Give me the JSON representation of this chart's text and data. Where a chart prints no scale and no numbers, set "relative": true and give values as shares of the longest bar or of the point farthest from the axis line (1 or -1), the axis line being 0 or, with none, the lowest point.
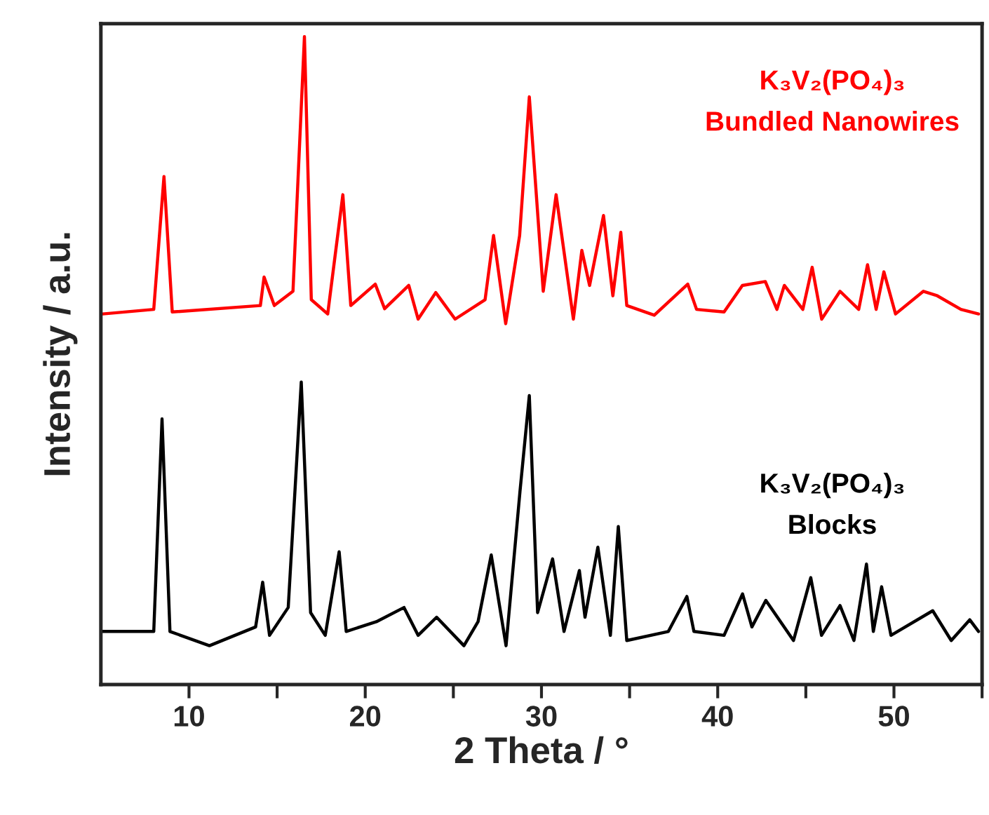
{
  "chart_data": {
    "type": "line",
    "xlabel": "2 Theta / °",
    "ylabel": "Intensity / a.u.",
    "relative": true,
    "xlim": [
      5,
      55
    ],
    "xticks": [
      10,
      {
        "value": 15,
        "label": null
      },
      20,
      {
        "value": 25,
        "label": null
      },
      30,
      {
        "value": 35,
        "label": null
      },
      40,
      {
        "value": 45,
        "label": null
      },
      50,
      {
        "value": 55,
        "label": null
      }
    ],
    "tick_labels": "x",
    "grid": false,
    "legend": false,
    "marker": "none",
    "line_style": "solid",
    "series": [
      {
        "name": "K₃V₂(PO₄)₃\nBundled Nanowires",
        "color": "#ff0000",
        "x": [
          5.1,
          8.0,
          8.58,
          9.05,
          14.05,
          14.26,
          14.84,
          15.9,
          16.55,
          16.94,
          17.87,
          18.73,
          19.18,
          20.57,
          21.1,
          22.47,
          23.0,
          24.0,
          25.1,
          26.8,
          27.28,
          27.97,
          28.76,
          29.31,
          30.1,
          30.83,
          31.81,
          32.29,
          32.73,
          33.52,
          34.05,
          34.5,
          34.84,
          36.4,
          38.3,
          38.8,
          40.36,
          41.4,
          42.7,
          43.36,
          43.78,
          44.83,
          45.36,
          45.9,
          46.94,
          48.0,
          48.5,
          48.99,
          49.43,
          50.09,
          51.67,
          52.46,
          53.8,
          54.8
        ],
        "values": [
          0.572,
          0.579,
          0.784,
          0.575,
          0.585,
          0.629,
          0.585,
          0.607,
          1.0,
          0.594,
          0.572,
          0.756,
          0.585,
          0.618,
          0.58,
          0.616,
          0.564,
          0.605,
          0.564,
          0.594,
          0.693,
          0.557,
          0.693,
          0.907,
          0.607,
          0.756,
          0.564,
          0.67,
          0.616,
          0.724,
          0.6,
          0.698,
          0.585,
          0.57,
          0.618,
          0.579,
          0.575,
          0.616,
          0.622,
          0.579,
          0.616,
          0.579,
          0.644,
          0.564,
          0.607,
          0.579,
          0.648,
          0.579,
          0.637,
          0.572,
          0.607,
          0.6,
          0.579,
          0.572
        ]
      },
      {
        "name": "K₃V₂(PO₄)₃\nBlocks",
        "color": "#000000",
        "x": [
          5.1,
          8.0,
          8.47,
          8.92,
          11.16,
          13.78,
          14.18,
          14.57,
          15.63,
          16.37,
          16.9,
          17.73,
          18.52,
          18.92,
          20.63,
          22.2,
          23.0,
          24.05,
          25.6,
          26.4,
          27.15,
          27.99,
          28.78,
          29.31,
          29.78,
          30.63,
          31.28,
          32.15,
          32.47,
          33.2,
          33.91,
          34.36,
          34.84,
          37.2,
          38.25,
          38.65,
          40.36,
          41.41,
          41.94,
          42.73,
          44.3,
          45.28,
          45.89,
          46.94,
          47.73,
          48.44,
          48.83,
          49.3,
          49.83,
          52.2,
          53.25,
          54.3,
          54.8
        ],
        "values": [
          0.082,
          0.082,
          0.41,
          0.082,
          0.06,
          0.089,
          0.158,
          0.076,
          0.119,
          0.467,
          0.111,
          0.076,
          0.205,
          0.082,
          0.097,
          0.119,
          0.076,
          0.104,
          0.06,
          0.097,
          0.2,
          0.06,
          0.298,
          0.446,
          0.111,
          0.194,
          0.082,
          0.176,
          0.104,
          0.212,
          0.076,
          0.244,
          0.068,
          0.082,
          0.136,
          0.082,
          0.076,
          0.14,
          0.089,
          0.13,
          0.068,
          0.165,
          0.076,
          0.122,
          0.068,
          0.186,
          0.082,
          0.151,
          0.076,
          0.114,
          0.068,
          0.1,
          0.082
        ]
      }
    ]
  }
}
